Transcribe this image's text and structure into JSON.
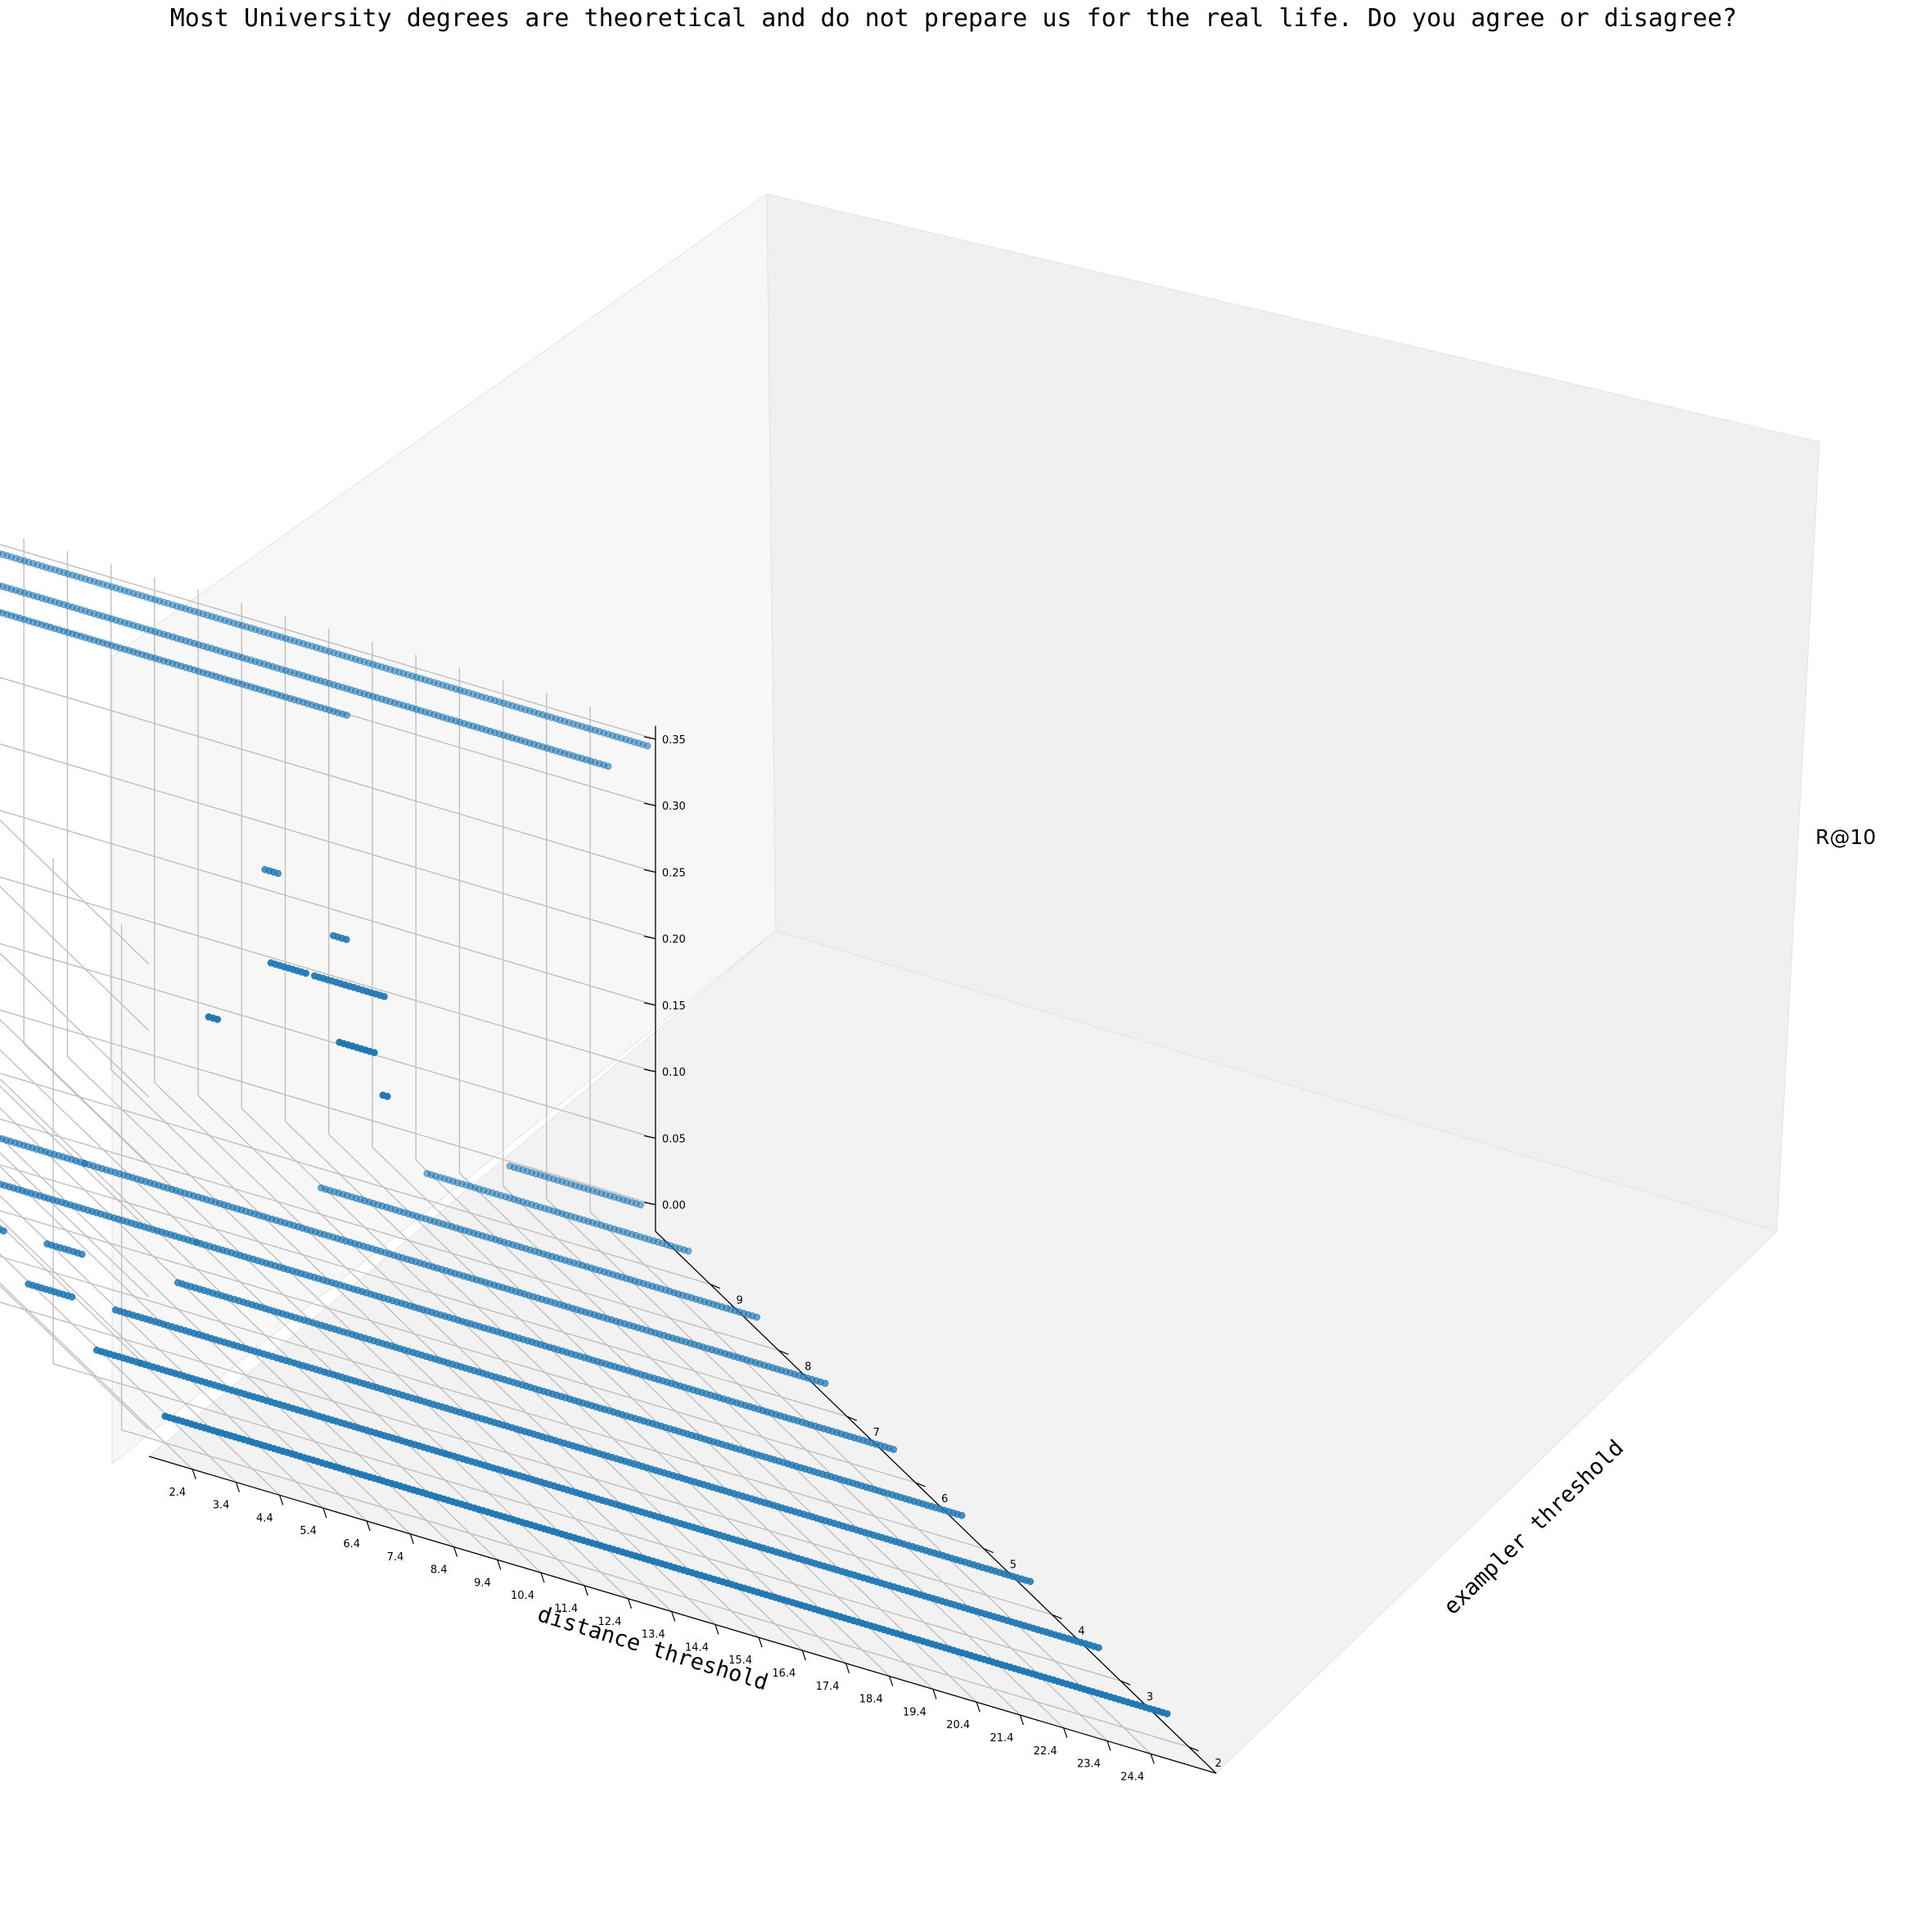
{
  "chart_data": {
    "type": "scatter",
    "projection": "3d",
    "title": "Most University degrees are theoretical and do not prepare us for the real life. Do you agree or disagree?",
    "xlabel": "distance threshold",
    "ylabel": "exampler threshold",
    "zlabel": "R@10",
    "xlim": [
      1.4,
      25.9
    ],
    "ylim": [
      1.6,
      9.8
    ],
    "zlim": [
      -0.02,
      0.36
    ],
    "x_ticks": [
      "2.4",
      "3.4",
      "4.4",
      "5.4",
      "6.4",
      "7.4",
      "8.4",
      "9.4",
      "10.4",
      "11.4",
      "12.4",
      "13.4",
      "14.4",
      "15.4",
      "16.4",
      "17.4",
      "18.4",
      "19.4",
      "20.4",
      "21.4",
      "22.4",
      "23.4",
      "24.4"
    ],
    "y_ticks": [
      "2",
      "3",
      "4",
      "5",
      "6",
      "7",
      "8",
      "9"
    ],
    "z_ticks": [
      "0.00",
      "0.05",
      "0.10",
      "0.15",
      "0.20",
      "0.25",
      "0.30",
      "0.35"
    ],
    "grid": true,
    "marker_color": "#1f77b4",
    "series": [
      {
        "points": [
          {
            "x_range": [
              2.4,
              25.4
            ],
            "y": 2,
            "z": 0
          },
          {
            "x_range": [
              2.4,
              3.4
            ],
            "y": 3,
            "z": 0
          },
          {
            "x_range": [
              3.4,
              10.4
            ],
            "y": 3,
            "z": 0
          },
          {
            "x_range": [
              10.4,
              25.4
            ],
            "y": 3,
            "z": 0
          },
          {
            "x_range": [
              2.4,
              3.4
            ],
            "y": 4,
            "z": 0
          },
          {
            "x_range": [
              4.4,
              25.4
            ],
            "y": 4,
            "z": 0
          },
          {
            "x_range": [
              2.4,
              3.4
            ],
            "y": 5,
            "z": 0
          },
          {
            "x_range": [
              4.4,
              5.2
            ],
            "y": 5,
            "z": 0
          },
          {
            "x_range": [
              7.4,
              25.4
            ],
            "y": 5,
            "z": 0
          },
          {
            "x_range": [
              2.4,
              9.4
            ],
            "y": 6,
            "z": 0
          },
          {
            "x_range": [
              9.4,
              25.4
            ],
            "y": 6,
            "z": 0
          },
          {
            "x_range": [
              2.4,
              8.4
            ],
            "y": 7,
            "z": 0
          },
          {
            "x_range": [
              8.4,
              25.4
            ],
            "y": 7,
            "z": 0
          },
          {
            "x_range": [
              2.4,
              7.4
            ],
            "y": 8,
            "z": 0
          },
          {
            "x_range": [
              15.4,
              25.4
            ],
            "y": 8,
            "z": 0
          },
          {
            "x_range": [
              2.4,
              7.4
            ],
            "y": 9,
            "z": 0
          },
          {
            "x_range": [
              19.4,
              25.4
            ],
            "y": 9,
            "z": 0
          },
          {
            "x_range": [
              2.4,
              7.4
            ],
            "y": 9.7,
            "z": 0
          },
          {
            "x_range": [
              22.4,
              25.4
            ],
            "y": 9.7,
            "z": 0
          },
          {
            "x_range": [
              3.4,
              3.6
            ],
            "y": 2,
            "z": 0.31
          },
          {
            "x_range": [
              6.4,
              7.2
            ],
            "y": 2,
            "z": 0.32
          },
          {
            "x_range": [
              7.4,
              7.5
            ],
            "y": 2,
            "z": 0.29
          },
          {
            "x_range": [
              6.4,
              7.2
            ],
            "y": 3,
            "z": 0.33
          },
          {
            "x_range": [
              7.4,
              9.0
            ],
            "y": 3,
            "z": 0.33
          },
          {
            "x_range": [
              9.4,
              9.7
            ],
            "y": 4,
            "z": 0.33
          },
          {
            "x_range": [
              9.4,
              9.7
            ],
            "y": 5,
            "z": 0.33
          },
          {
            "x_range": [
              9.4,
              17.4
            ],
            "y": 8.9,
            "z": 0.33
          },
          {
            "x_range": [
              9.4,
              23.4
            ],
            "y": 8.9,
            "z": 0.35
          },
          {
            "x_range": [
              9.4,
              25.4
            ],
            "y": 9.6,
            "z": 0.35
          }
        ]
      }
    ]
  }
}
